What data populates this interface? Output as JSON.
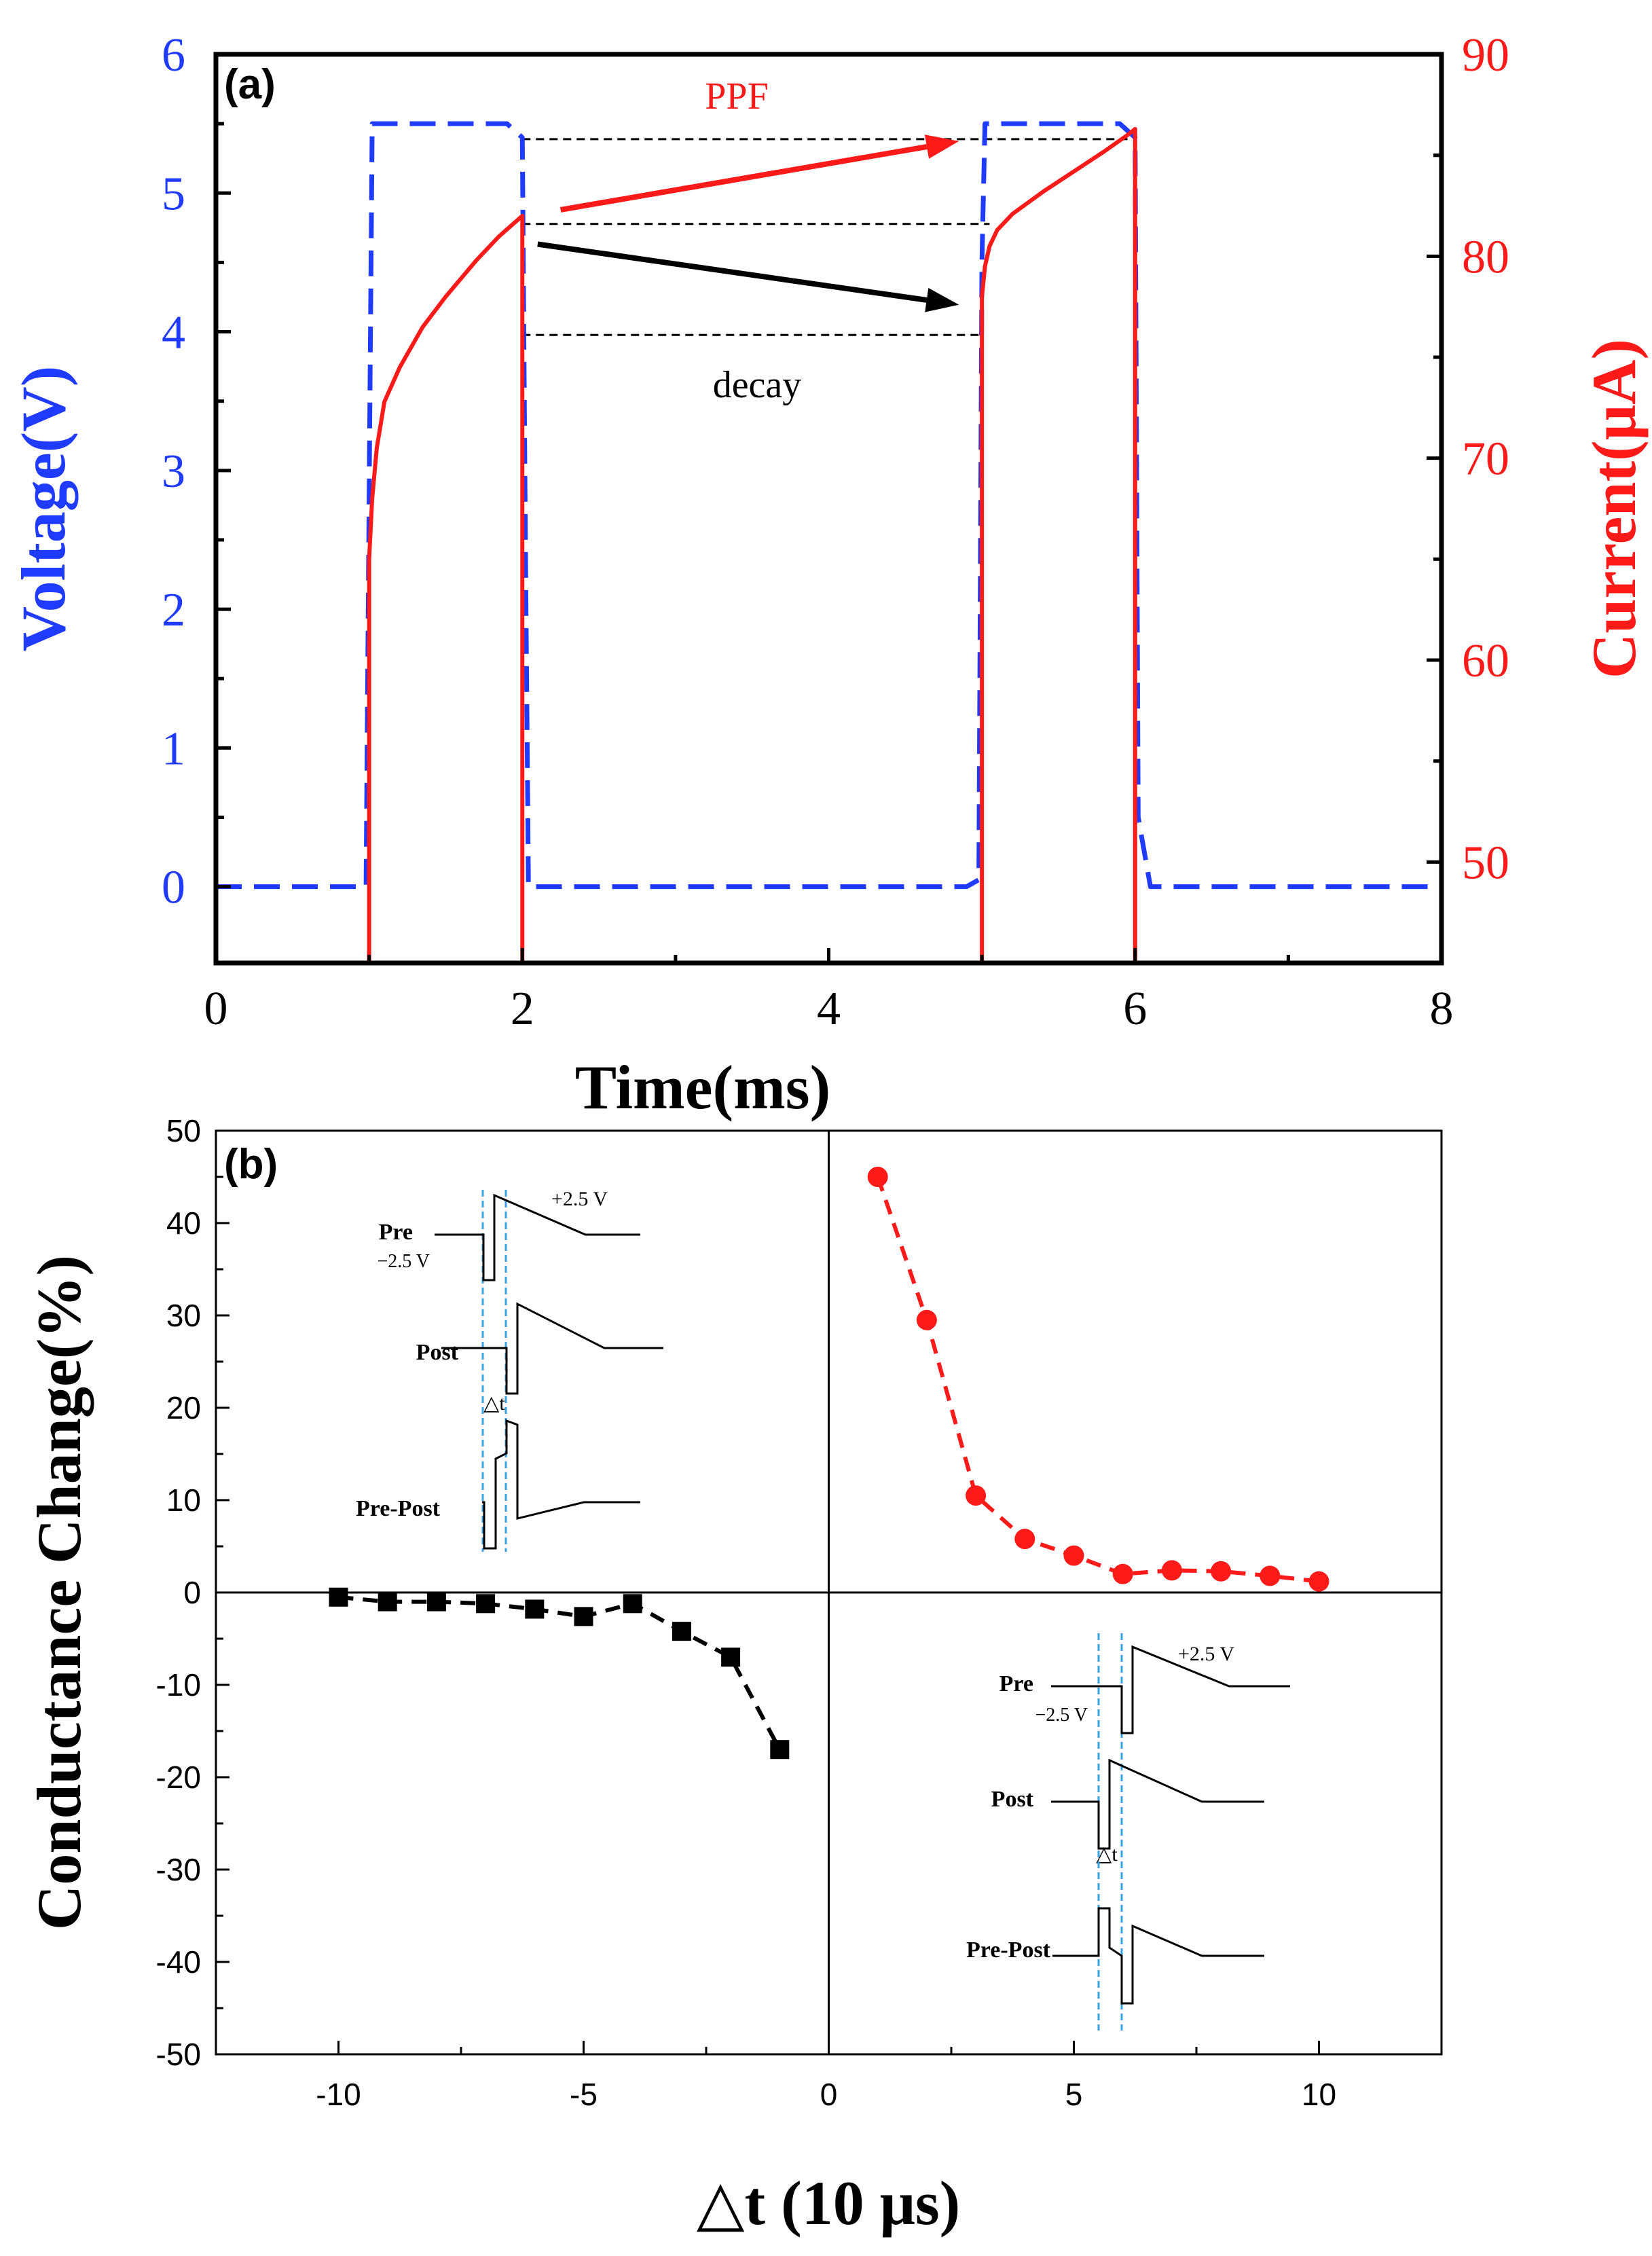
{
  "colors": {
    "voltage": "#1f3bff",
    "current": "#ff1a1a",
    "black": "#000000",
    "depress": "#000000",
    "facil": "#ff1a1a",
    "guide": "#3aa0e6"
  },
  "chart_data": [
    {
      "type": "line",
      "panel_label": "(a)",
      "xlabel": "Time(ms)",
      "ylabel_left": "Voltage(V)",
      "ylabel_right": "Current(μA)",
      "xlim": [
        0,
        8
      ],
      "ylim_left": [
        -0.55,
        6
      ],
      "ylim_right": [
        45,
        90
      ],
      "x_ticks": [
        "0",
        "2",
        "4",
        "6",
        "8"
      ],
      "y_ticks_left": [
        "0",
        "1",
        "2",
        "3",
        "4",
        "5",
        "6"
      ],
      "y_ticks_right": [
        "50",
        "60",
        "70",
        "80",
        "90"
      ],
      "series": [
        {
          "name": "Voltage",
          "axis": "left",
          "style": "dashed",
          "x": [
            0,
            0.98,
            1.0,
            1.02,
            1.9,
            2.0,
            2.02,
            2.04,
            4.9,
            4.98,
            5.0,
            5.02,
            5.9,
            6.0,
            6.02,
            6.1,
            8.0
          ],
          "y": [
            0,
            0,
            2.8,
            5.5,
            5.5,
            5.4,
            2.5,
            0,
            0,
            0.05,
            4.5,
            5.5,
            5.5,
            5.4,
            0.5,
            0,
            0
          ]
        },
        {
          "name": "Current",
          "axis": "right",
          "style": "solid",
          "x": [
            1.0,
            1.0,
            1.02,
            1.05,
            1.1,
            1.2,
            1.35,
            1.5,
            1.7,
            1.85,
            2.0,
            2.0,
            5.0,
            5.0,
            5.02,
            5.05,
            5.1,
            5.2,
            5.4,
            5.6,
            5.8,
            5.95,
            6.0,
            6.0
          ],
          "y": [
            45,
            65,
            68,
            70.5,
            72.8,
            74.5,
            76.5,
            78,
            79.8,
            81,
            82,
            45,
            45,
            78,
            79.5,
            80.5,
            81.3,
            82.1,
            83.2,
            84.2,
            85.2,
            86,
            86.3,
            45
          ]
        }
      ],
      "annotations": [
        {
          "text": "PPF",
          "from": [
            2.25,
            82.3
          ],
          "to": [
            4.85,
            85.7
          ],
          "color": "current"
        },
        {
          "text": "decay",
          "from": [
            2.1,
            80.6
          ],
          "to": [
            4.85,
            77.6
          ],
          "color": "black"
        }
      ],
      "reference_lines_current": [
        85.8,
        81.6,
        76.1
      ]
    },
    {
      "type": "scatter",
      "panel_label": "(b)",
      "xlabel": "△t (10 μs)",
      "ylabel": "Conductance Change(%)",
      "xlim": [
        -12.5,
        12.5
      ],
      "ylim": [
        -50,
        50
      ],
      "x_ticks": [
        "-10",
        "-5",
        "0",
        "5",
        "10"
      ],
      "y_ticks": [
        "-50",
        "-40",
        "-30",
        "-20",
        "-10",
        "0",
        "10",
        "20",
        "30",
        "40",
        "50"
      ],
      "series": [
        {
          "name": "negative Δt",
          "marker": "square",
          "x": [
            -10,
            -9,
            -8,
            -7,
            -6,
            -5,
            -4,
            -3,
            -2,
            -1
          ],
          "y": [
            -0.5,
            -1.0,
            -1.0,
            -1.2,
            -1.8,
            -2.6,
            -1.2,
            -4.2,
            -7.0,
            -17.0
          ]
        },
        {
          "name": "positive Δt",
          "marker": "circle",
          "x": [
            1,
            2,
            3,
            4,
            5,
            6,
            7,
            8,
            9,
            10
          ],
          "y": [
            45.0,
            29.5,
            10.5,
            5.8,
            4.0,
            2.0,
            2.4,
            2.3,
            1.8,
            1.2
          ]
        }
      ],
      "insets": [
        {
          "position": "upper-left",
          "rows": [
            "Pre",
            "Post",
            "Pre-Post"
          ],
          "plus_label": "+2.5 V",
          "minus_label": "−2.5 V",
          "dt_label": "△t"
        },
        {
          "position": "lower-right",
          "rows": [
            "Pre",
            "Post",
            "Pre-Post"
          ],
          "plus_label": "+2.5 V",
          "minus_label": "−2.5 V",
          "dt_label": "△t"
        }
      ]
    }
  ]
}
